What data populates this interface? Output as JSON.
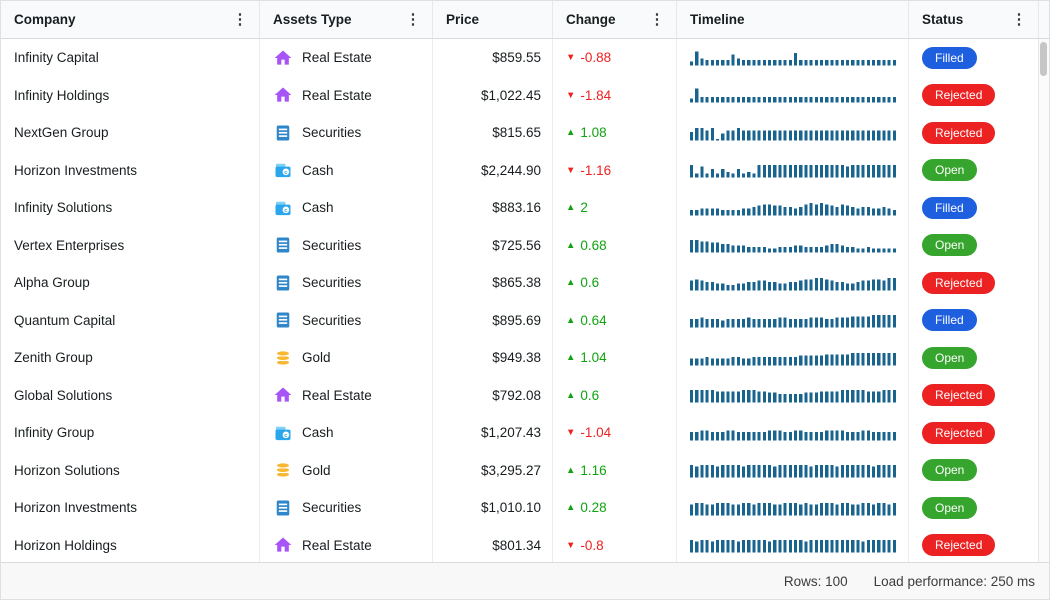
{
  "grid": {
    "columns": [
      {
        "id": "company",
        "label": "Company",
        "has_menu": true
      },
      {
        "id": "assets_type",
        "label": "Assets Type",
        "has_menu": true
      },
      {
        "id": "price",
        "label": "Price",
        "has_menu": false
      },
      {
        "id": "change",
        "label": "Change",
        "has_menu": true
      },
      {
        "id": "timeline",
        "label": "Timeline",
        "has_menu": false
      },
      {
        "id": "status",
        "label": "Status",
        "has_menu": true
      }
    ],
    "rows": [
      {
        "company": "Infinity Capital",
        "asset_type": "Real Estate",
        "price": "$859.55",
        "change": "-0.88",
        "trend": "down",
        "status": "Filled",
        "timeline": [
          3,
          10,
          5,
          4,
          4,
          4,
          4,
          4,
          8,
          5,
          4,
          4,
          4,
          4,
          4,
          4,
          4,
          4,
          4,
          4,
          9,
          4,
          4,
          4,
          4,
          4,
          4,
          4,
          4,
          4,
          4,
          4,
          4,
          4,
          4,
          4,
          4,
          4,
          4,
          4
        ]
      },
      {
        "company": "Infinity Holdings",
        "asset_type": "Real Estate",
        "price": "$1,022.45",
        "change": "-1.84",
        "trend": "down",
        "status": "Rejected",
        "timeline": [
          3,
          10,
          4,
          4,
          4,
          4,
          4,
          4,
          4,
          4,
          4,
          4,
          4,
          4,
          4,
          4,
          4,
          4,
          4,
          4,
          4,
          4,
          4,
          4,
          4,
          4,
          4,
          4,
          4,
          4,
          4,
          4,
          4,
          4,
          4,
          4,
          4,
          4,
          4,
          4
        ]
      },
      {
        "company": "NextGen Group",
        "asset_type": "Securities",
        "price": "$815.65",
        "change": "1.08",
        "trend": "up",
        "status": "Rejected",
        "timeline": [
          6,
          9,
          9,
          7,
          9,
          1,
          5,
          7,
          7,
          9,
          7,
          7,
          7,
          7,
          7,
          7,
          7,
          7,
          7,
          7,
          7,
          7,
          7,
          7,
          7,
          7,
          7,
          7,
          7,
          7,
          7,
          7,
          7,
          7,
          7,
          7,
          7,
          7,
          7,
          7
        ]
      },
      {
        "company": "Horizon Investments",
        "asset_type": "Cash",
        "price": "$2,244.90",
        "change": "-1.16",
        "trend": "down",
        "status": "Open",
        "timeline": [
          9,
          3,
          8,
          3,
          6,
          3,
          6,
          4,
          3,
          6,
          3,
          4,
          3,
          9,
          9,
          9,
          9,
          9,
          9,
          9,
          9,
          9,
          9,
          9,
          9,
          9,
          9,
          9,
          9,
          9,
          8,
          9,
          9,
          9,
          9,
          9,
          9,
          9,
          9,
          9
        ]
      },
      {
        "company": "Infinity Solutions",
        "asset_type": "Cash",
        "price": "$883.16",
        "change": "2",
        "trend": "up",
        "status": "Filled",
        "timeline": [
          4,
          4,
          5,
          5,
          5,
          5,
          4,
          4,
          4,
          4,
          5,
          5,
          6,
          7,
          8,
          8,
          7,
          7,
          6,
          6,
          5,
          6,
          8,
          9,
          8,
          9,
          8,
          7,
          6,
          8,
          7,
          6,
          5,
          6,
          6,
          5,
          5,
          6,
          5,
          4
        ]
      },
      {
        "company": "Vertex Enterprises",
        "asset_type": "Securities",
        "price": "$725.56",
        "change": "0.68",
        "trend": "up",
        "status": "Open",
        "timeline": [
          9,
          9,
          8,
          8,
          7,
          7,
          6,
          6,
          5,
          5,
          5,
          4,
          4,
          4,
          4,
          3,
          3,
          4,
          4,
          4,
          5,
          5,
          4,
          4,
          4,
          4,
          5,
          6,
          6,
          5,
          4,
          4,
          3,
          3,
          4,
          3,
          3,
          3,
          3,
          3
        ]
      },
      {
        "company": "Alpha Group",
        "asset_type": "Securities",
        "price": "$865.38",
        "change": "0.6",
        "trend": "up",
        "status": "Rejected",
        "timeline": [
          7,
          8,
          7,
          6,
          6,
          5,
          5,
          4,
          4,
          5,
          5,
          6,
          6,
          7,
          7,
          6,
          6,
          5,
          5,
          6,
          6,
          7,
          8,
          8,
          9,
          9,
          8,
          7,
          6,
          6,
          5,
          5,
          6,
          7,
          7,
          8,
          8,
          7,
          9,
          9
        ]
      },
      {
        "company": "Quantum Capital",
        "asset_type": "Securities",
        "price": "$895.69",
        "change": "0.64",
        "trend": "up",
        "status": "Filled",
        "timeline": [
          6,
          6,
          7,
          6,
          6,
          6,
          5,
          6,
          6,
          6,
          6,
          7,
          6,
          6,
          6,
          6,
          6,
          7,
          7,
          6,
          6,
          6,
          6,
          7,
          7,
          7,
          6,
          6,
          7,
          7,
          7,
          8,
          8,
          8,
          8,
          9,
          9,
          9,
          9,
          9
        ]
      },
      {
        "company": "Zenith Group",
        "asset_type": "Gold",
        "price": "$949.38",
        "change": "1.04",
        "trend": "up",
        "status": "Open",
        "timeline": [
          5,
          5,
          5,
          6,
          5,
          5,
          5,
          5,
          6,
          6,
          5,
          5,
          6,
          6,
          6,
          6,
          6,
          6,
          6,
          6,
          6,
          7,
          7,
          7,
          7,
          7,
          8,
          8,
          8,
          8,
          8,
          9,
          9,
          9,
          9,
          9,
          9,
          9,
          9,
          9
        ]
      },
      {
        "company": "Global Solutions",
        "asset_type": "Real Estate",
        "price": "$792.08",
        "change": "0.6",
        "trend": "up",
        "status": "Rejected",
        "timeline": [
          9,
          9,
          9,
          9,
          9,
          8,
          8,
          8,
          8,
          8,
          9,
          9,
          9,
          8,
          8,
          7,
          7,
          6,
          6,
          6,
          6,
          6,
          7,
          7,
          7,
          8,
          8,
          8,
          8,
          9,
          9,
          9,
          9,
          9,
          8,
          8,
          8,
          9,
          9,
          9
        ]
      },
      {
        "company": "Infinity Group",
        "asset_type": "Cash",
        "price": "$1,207.43",
        "change": "-1.04",
        "trend": "down",
        "status": "Rejected",
        "timeline": [
          6,
          6,
          7,
          7,
          6,
          6,
          6,
          7,
          7,
          6,
          6,
          6,
          6,
          6,
          6,
          7,
          7,
          7,
          6,
          6,
          7,
          7,
          6,
          6,
          6,
          6,
          7,
          7,
          7,
          7,
          6,
          6,
          6,
          7,
          7,
          6,
          6,
          6,
          6,
          6
        ]
      },
      {
        "company": "Horizon Solutions",
        "asset_type": "Gold",
        "price": "$3,295.27",
        "change": "1.16",
        "trend": "up",
        "status": "Open",
        "timeline": [
          9,
          8,
          9,
          9,
          9,
          8,
          9,
          9,
          9,
          9,
          8,
          9,
          9,
          9,
          9,
          9,
          8,
          9,
          9,
          9,
          9,
          9,
          9,
          8,
          9,
          9,
          9,
          9,
          8,
          9,
          9,
          9,
          9,
          9,
          9,
          8,
          9,
          9,
          9,
          9
        ]
      },
      {
        "company": "Horizon Investments",
        "asset_type": "Securities",
        "price": "$1,010.10",
        "change": "0.28",
        "trend": "up",
        "status": "Open",
        "timeline": [
          8,
          9,
          9,
          8,
          8,
          9,
          9,
          9,
          8,
          8,
          9,
          9,
          8,
          9,
          9,
          9,
          8,
          8,
          9,
          9,
          9,
          8,
          9,
          8,
          8,
          9,
          9,
          9,
          8,
          9,
          9,
          8,
          8,
          9,
          9,
          8,
          9,
          9,
          8,
          9
        ]
      },
      {
        "company": "Horizon Holdings",
        "asset_type": "Real Estate",
        "price": "$801.34",
        "change": "-0.8",
        "trend": "down",
        "status": "Rejected",
        "timeline": [
          9,
          8,
          9,
          9,
          8,
          9,
          9,
          9,
          9,
          8,
          9,
          9,
          9,
          9,
          9,
          8,
          9,
          9,
          9,
          9,
          9,
          9,
          8,
          9,
          9,
          9,
          9,
          9,
          9,
          9,
          9,
          9,
          9,
          8,
          9,
          9,
          9,
          9,
          9,
          9
        ]
      }
    ]
  },
  "footer": {
    "rows_text": "Rows: 100",
    "performance_text": "Load performance: 250 ms"
  },
  "icons": {
    "menu": "kebab-menu-icon",
    "trend_up": "▲",
    "trend_down": "▼"
  },
  "colors": {
    "change_up": "#10a310",
    "change_down": "#ef2121",
    "sparkline": "#19638f",
    "status": {
      "Filled": "#1e5fe0",
      "Rejected": "#ec2222",
      "Open": "#36a52d"
    },
    "assets": {
      "Real Estate": "#a855f7",
      "Securities": "#2f86c9",
      "Cash": "#2aa7ec",
      "Cash_flap": "#7fd0f7",
      "Gold": "#f7b731"
    }
  }
}
